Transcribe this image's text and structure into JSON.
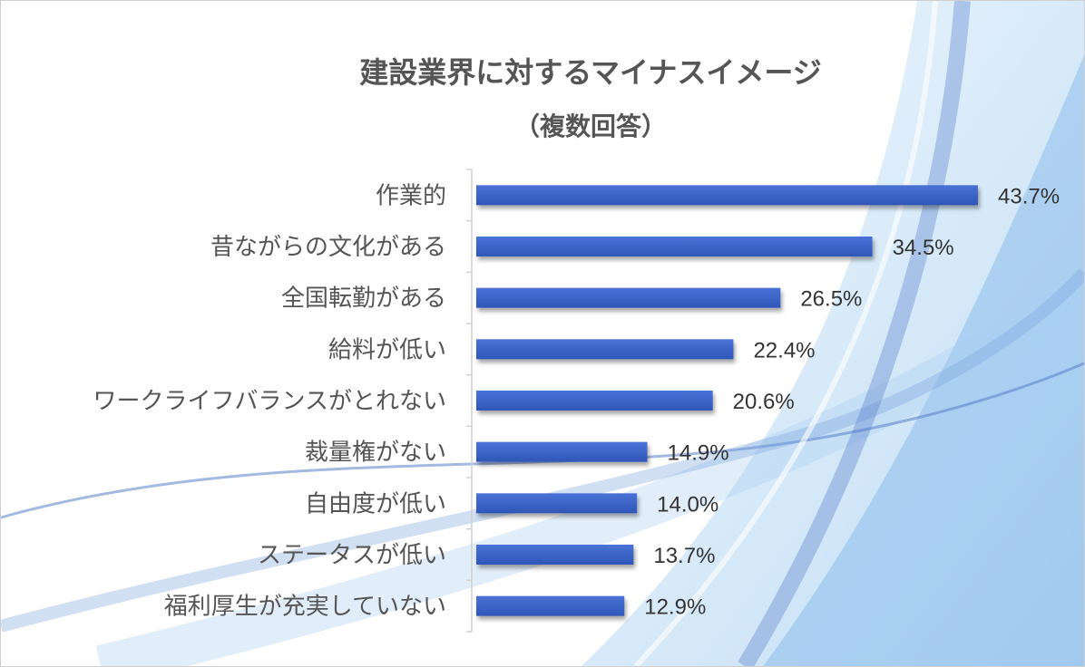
{
  "chart_data": {
    "type": "bar",
    "orientation": "horizontal",
    "title": "建設業界に対するマイナスイメージ",
    "subtitle": "（複数回答）",
    "categories": [
      "作業的",
      "昔ながらの文化がある",
      "全国転勤がある",
      "給料が低い",
      "ワークライフバランスがとれない",
      "裁量権がない",
      "自由度が低い",
      "ステータスが低い",
      "福利厚生が充実していない"
    ],
    "values": [
      43.7,
      34.5,
      26.5,
      22.4,
      20.6,
      14.9,
      14.0,
      13.7,
      12.9
    ],
    "value_labels": [
      "43.7%",
      "34.5%",
      "26.5%",
      "22.4%",
      "20.6%",
      "14.9%",
      "14.0%",
      "13.7%",
      "12.9%"
    ],
    "unit": "%",
    "xlim": [
      0,
      50
    ],
    "grid": false,
    "legend": "none",
    "colors": {
      "bar": "#3D63C9",
      "bar_dark": "#2E4FA8",
      "text": "#555555",
      "value_text": "#333333",
      "background_accent": "#9EC8EE"
    }
  }
}
